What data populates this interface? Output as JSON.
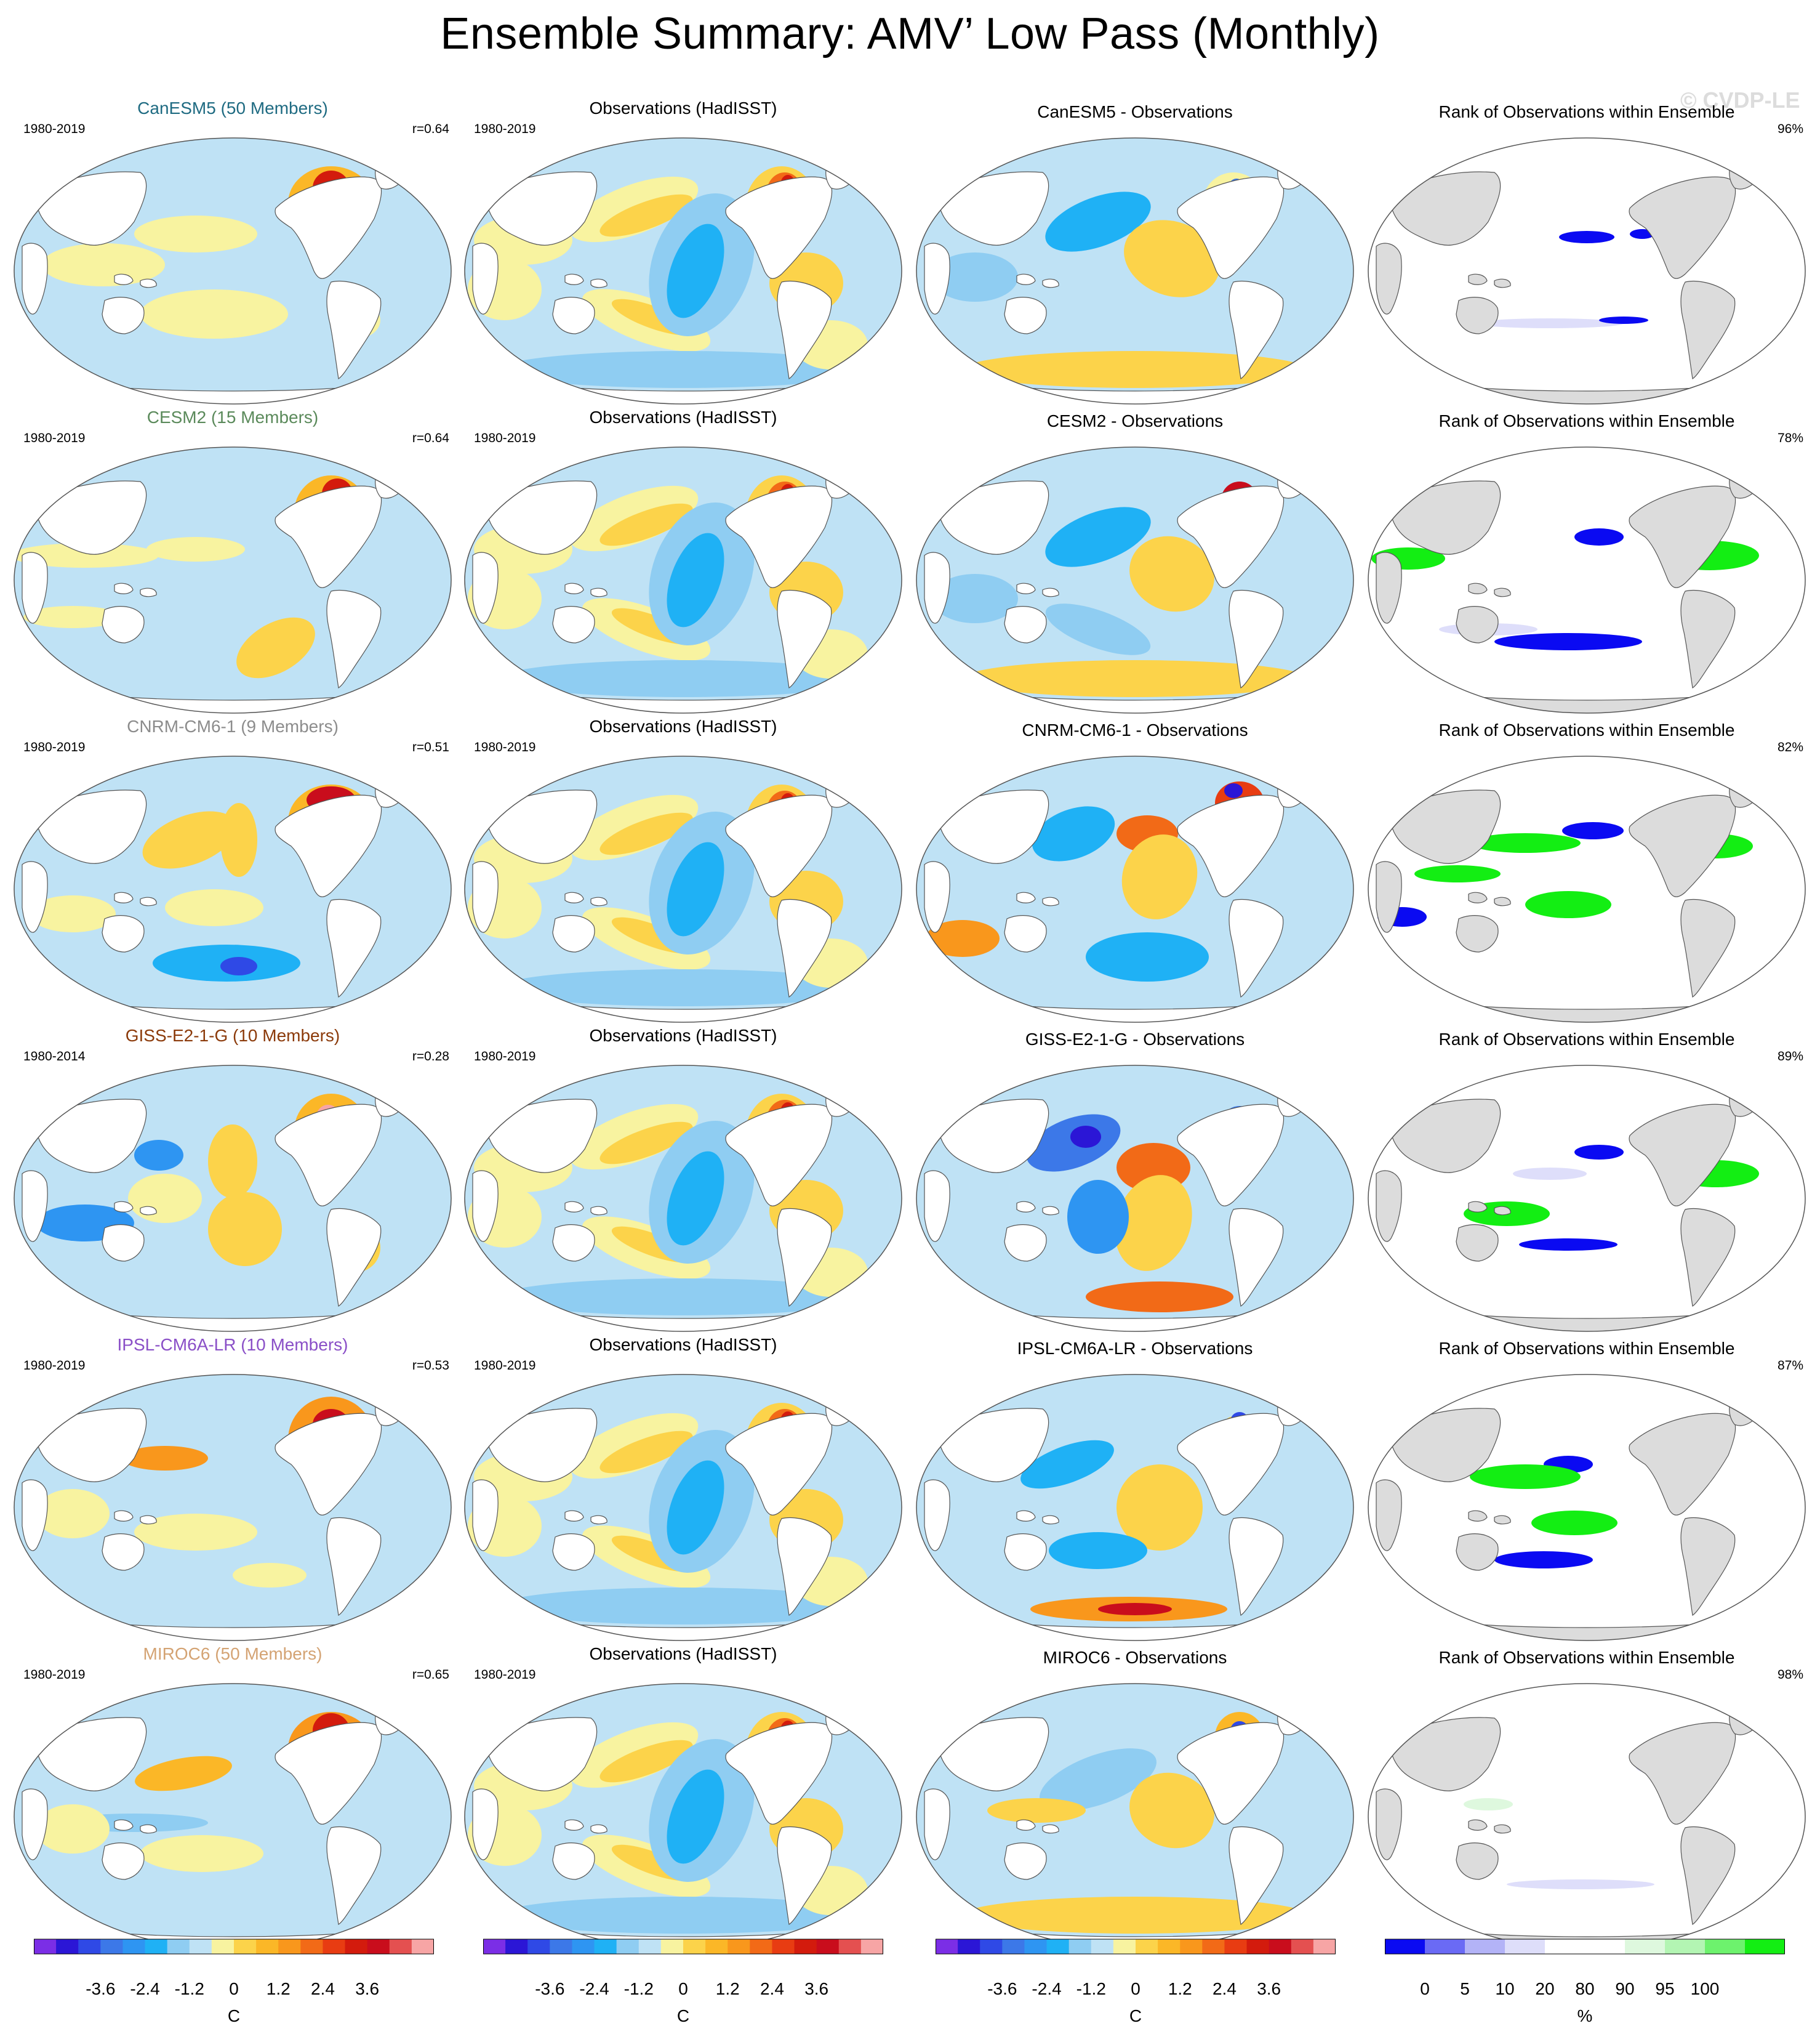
{
  "title": "Ensemble Summary: AMV’ Low Pass (Monthly)",
  "watermark": "© CVDP-LE",
  "rows": [
    {
      "model": {
        "title": "CanESM5 (50 Members)",
        "color": "#1f6b82",
        "period": "1980-2019",
        "r": "r=0.64"
      },
      "obs": {
        "title": "Observations (HadISST)",
        "period": "1980-2019"
      },
      "diff": {
        "title": "CanESM5 - Observations"
      },
      "rank": {
        "title": "Rank of Observations within Ensemble",
        "pct": "96%"
      }
    },
    {
      "model": {
        "title": "CESM2 (15 Members)",
        "color": "#5b8a5b",
        "period": "1980-2019",
        "r": "r=0.64"
      },
      "obs": {
        "title": "Observations (HadISST)",
        "period": "1980-2019"
      },
      "diff": {
        "title": "CESM2 - Observations"
      },
      "rank": {
        "title": "Rank of Observations within Ensemble",
        "pct": "78%"
      }
    },
    {
      "model": {
        "title": "CNRM-CM6-1 (9 Members)",
        "color": "#8c8c8c",
        "period": "1980-2019",
        "r": "r=0.51"
      },
      "obs": {
        "title": "Observations (HadISST)",
        "period": "1980-2019"
      },
      "diff": {
        "title": "CNRM-CM6-1 - Observations"
      },
      "rank": {
        "title": "Rank of Observations within Ensemble",
        "pct": "82%"
      }
    },
    {
      "model": {
        "title": "GISS-E2-1-G (10 Members)",
        "color": "#8b3a0a",
        "period": "1980-2014",
        "r": "r=0.28"
      },
      "obs": {
        "title": "Observations (HadISST)",
        "period": "1980-2019"
      },
      "diff": {
        "title": "GISS-E2-1-G - Observations"
      },
      "rank": {
        "title": "Rank of Observations within Ensemble",
        "pct": "89%"
      }
    },
    {
      "model": {
        "title": "IPSL-CM6A-LR (10 Members)",
        "color": "#8a4fc7",
        "period": "1980-2019",
        "r": "r=0.53"
      },
      "obs": {
        "title": "Observations (HadISST)",
        "period": "1980-2019"
      },
      "diff": {
        "title": "IPSL-CM6A-LR - Observations"
      },
      "rank": {
        "title": "Rank of Observations within Ensemble",
        "pct": "87%"
      }
    },
    {
      "model": {
        "title": "MIROC6 (50 Members)",
        "color": "#d4a373",
        "period": "1980-2019",
        "r": "r=0.65"
      },
      "obs": {
        "title": "Observations (HadISST)",
        "period": "1980-2019"
      },
      "diff": {
        "title": "MIROC6 - Observations"
      },
      "rank": {
        "title": "Rank of Observations within Ensemble",
        "pct": "98%"
      }
    }
  ],
  "sst_colorbar": {
    "colors": [
      "#7b2ee6",
      "#2b16d6",
      "#2f49e6",
      "#3c78e8",
      "#2e95f2",
      "#1fb1f5",
      "#8fcdf2",
      "#bfe2f5",
      "#f8f3a0",
      "#fcd34a",
      "#fbb727",
      "#f9971c",
      "#f26a17",
      "#e83c12",
      "#d31b0d",
      "#c90d1c",
      "#e45050",
      "#f7a5a5"
    ],
    "ticks": [
      "-3.6",
      "-2.4",
      "-1.2",
      "0",
      "1.2",
      "2.4",
      "3.6"
    ],
    "unit": "C"
  },
  "rank_colorbar": {
    "colors": [
      "#0a0af2",
      "#6a6af5",
      "#b3b3f7",
      "#dedefa",
      "#ffffff",
      "#ffffff",
      "#def8de",
      "#b3f5b3",
      "#6df26d",
      "#13ee13"
    ],
    "ticks": [
      "0",
      "5",
      "10",
      "20",
      "80",
      "90",
      "95",
      "100"
    ],
    "unit": "%"
  }
}
